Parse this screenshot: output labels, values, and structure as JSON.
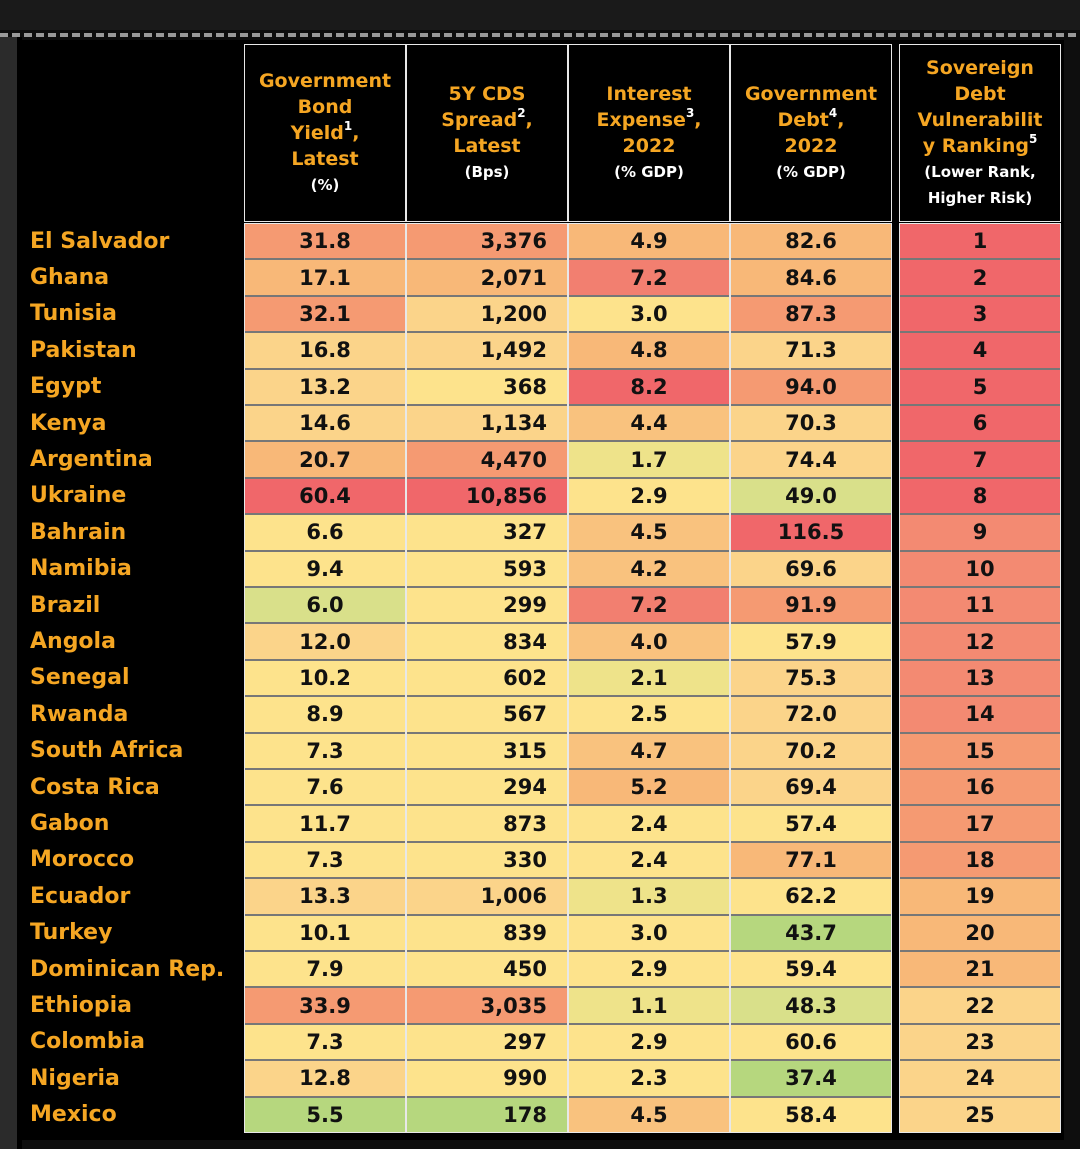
{
  "chart_data": {
    "type": "table",
    "headers": [
      {
        "lines": [
          "Government",
          "Bond",
          "Yield",
          "Latest"
        ],
        "sup": "1",
        "unit": "(%)"
      },
      {
        "lines": [
          "5Y CDS",
          "Spread",
          "Latest"
        ],
        "sup": "2",
        "unit": "(Bps)"
      },
      {
        "lines": [
          "Interest",
          "Expense",
          "2022"
        ],
        "sup": "3",
        "unit": "(% GDP)"
      },
      {
        "lines": [
          "Government",
          "Debt",
          "2022"
        ],
        "sup": "4",
        "unit": "(% GDP)"
      },
      {
        "lines": [
          "Sovereign",
          "Debt",
          "Vulnerabilit",
          "y Ranking"
        ],
        "sup": "5",
        "unit": "(Lower Rank,",
        "unit2": "Higher Risk)"
      }
    ],
    "rows": [
      {
        "country": "El Salvador",
        "yield": "31.8",
        "cds": "3,376",
        "interest": "4.9",
        "debt": "82.6",
        "rank": "1"
      },
      {
        "country": "Ghana",
        "yield": "17.1",
        "cds": "2,071",
        "interest": "7.2",
        "debt": "84.6",
        "rank": "2"
      },
      {
        "country": "Tunisia",
        "yield": "32.1",
        "cds": "1,200",
        "interest": "3.0",
        "debt": "87.3",
        "rank": "3"
      },
      {
        "country": "Pakistan",
        "yield": "16.8",
        "cds": "1,492",
        "interest": "4.8",
        "debt": "71.3",
        "rank": "4"
      },
      {
        "country": "Egypt",
        "yield": "13.2",
        "cds": "368",
        "interest": "8.2",
        "debt": "94.0",
        "rank": "5"
      },
      {
        "country": "Kenya",
        "yield": "14.6",
        "cds": "1,134",
        "interest": "4.4",
        "debt": "70.3",
        "rank": "6"
      },
      {
        "country": "Argentina",
        "yield": "20.7",
        "cds": "4,470",
        "interest": "1.7",
        "debt": "74.4",
        "rank": "7"
      },
      {
        "country": "Ukraine",
        "yield": "60.4",
        "cds": "10,856",
        "interest": "2.9",
        "debt": "49.0",
        "rank": "8"
      },
      {
        "country": "Bahrain",
        "yield": "6.6",
        "cds": "327",
        "interest": "4.5",
        "debt": "116.5",
        "rank": "9"
      },
      {
        "country": "Namibia",
        "yield": "9.4",
        "cds": "593",
        "interest": "4.2",
        "debt": "69.6",
        "rank": "10"
      },
      {
        "country": "Brazil",
        "yield": "6.0",
        "cds": "299",
        "interest": "7.2",
        "debt": "91.9",
        "rank": "11"
      },
      {
        "country": "Angola",
        "yield": "12.0",
        "cds": "834",
        "interest": "4.0",
        "debt": "57.9",
        "rank": "12"
      },
      {
        "country": "Senegal",
        "yield": "10.2",
        "cds": "602",
        "interest": "2.1",
        "debt": "75.3",
        "rank": "13"
      },
      {
        "country": "Rwanda",
        "yield": "8.9",
        "cds": "567",
        "interest": "2.5",
        "debt": "72.0",
        "rank": "14"
      },
      {
        "country": "South Africa",
        "yield": "7.3",
        "cds": "315",
        "interest": "4.7",
        "debt": "70.2",
        "rank": "15"
      },
      {
        "country": "Costa Rica",
        "yield": "7.6",
        "cds": "294",
        "interest": "5.2",
        "debt": "69.4",
        "rank": "16"
      },
      {
        "country": "Gabon",
        "yield": "11.7",
        "cds": "873",
        "interest": "2.4",
        "debt": "57.4",
        "rank": "17"
      },
      {
        "country": "Morocco",
        "yield": "7.3",
        "cds": "330",
        "interest": "2.4",
        "debt": "77.1",
        "rank": "18"
      },
      {
        "country": "Ecuador",
        "yield": "13.3",
        "cds": "1,006",
        "interest": "1.3",
        "debt": "62.2",
        "rank": "19"
      },
      {
        "country": "Turkey",
        "yield": "10.1",
        "cds": "839",
        "interest": "3.0",
        "debt": "43.7",
        "rank": "20"
      },
      {
        "country": "Dominican Rep.",
        "yield": "7.9",
        "cds": "450",
        "interest": "2.9",
        "debt": "59.4",
        "rank": "21"
      },
      {
        "country": "Ethiopia",
        "yield": "33.9",
        "cds": "3,035",
        "interest": "1.1",
        "debt": "48.3",
        "rank": "22"
      },
      {
        "country": "Colombia",
        "yield": "7.3",
        "cds": "297",
        "interest": "2.9",
        "debt": "60.6",
        "rank": "23"
      },
      {
        "country": "Nigeria",
        "yield": "12.8",
        "cds": "990",
        "interest": "2.3",
        "debt": "37.4",
        "rank": "24"
      },
      {
        "country": "Mexico",
        "yield": "5.5",
        "cds": "178",
        "interest": "4.5",
        "debt": "58.4",
        "rank": "25"
      }
    ],
    "colors": {
      "header_text": "#f5a623",
      "country_text": "#f5a623",
      "red": "#f0676a",
      "salmon": "#f59a72",
      "orange": "#f8b878",
      "light_orange": "#fbd48a",
      "yellow": "#fde38c",
      "pale_green": "#d9e08a",
      "green": "#b6d77e"
    }
  }
}
